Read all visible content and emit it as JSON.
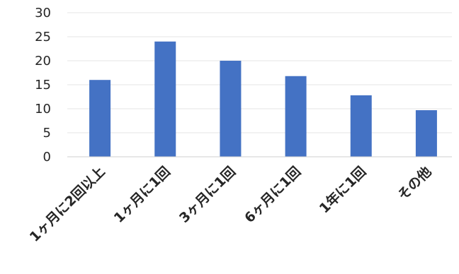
{
  "chart_data": {
    "type": "bar",
    "categories": [
      "1ヶ月に2回以上",
      "1ヶ月に1回",
      "3ヶ月に1回",
      "6ヶ月に1回",
      "1年に1回",
      "その他"
    ],
    "values": [
      16,
      24,
      20,
      16.8,
      12.8,
      9.7
    ],
    "title": "",
    "xlabel": "",
    "ylabel": "",
    "ylim": [
      0,
      30
    ],
    "yticks": [
      0,
      5,
      10,
      15,
      20,
      25,
      30
    ],
    "grid": true,
    "bar_color": "#4472c4"
  }
}
